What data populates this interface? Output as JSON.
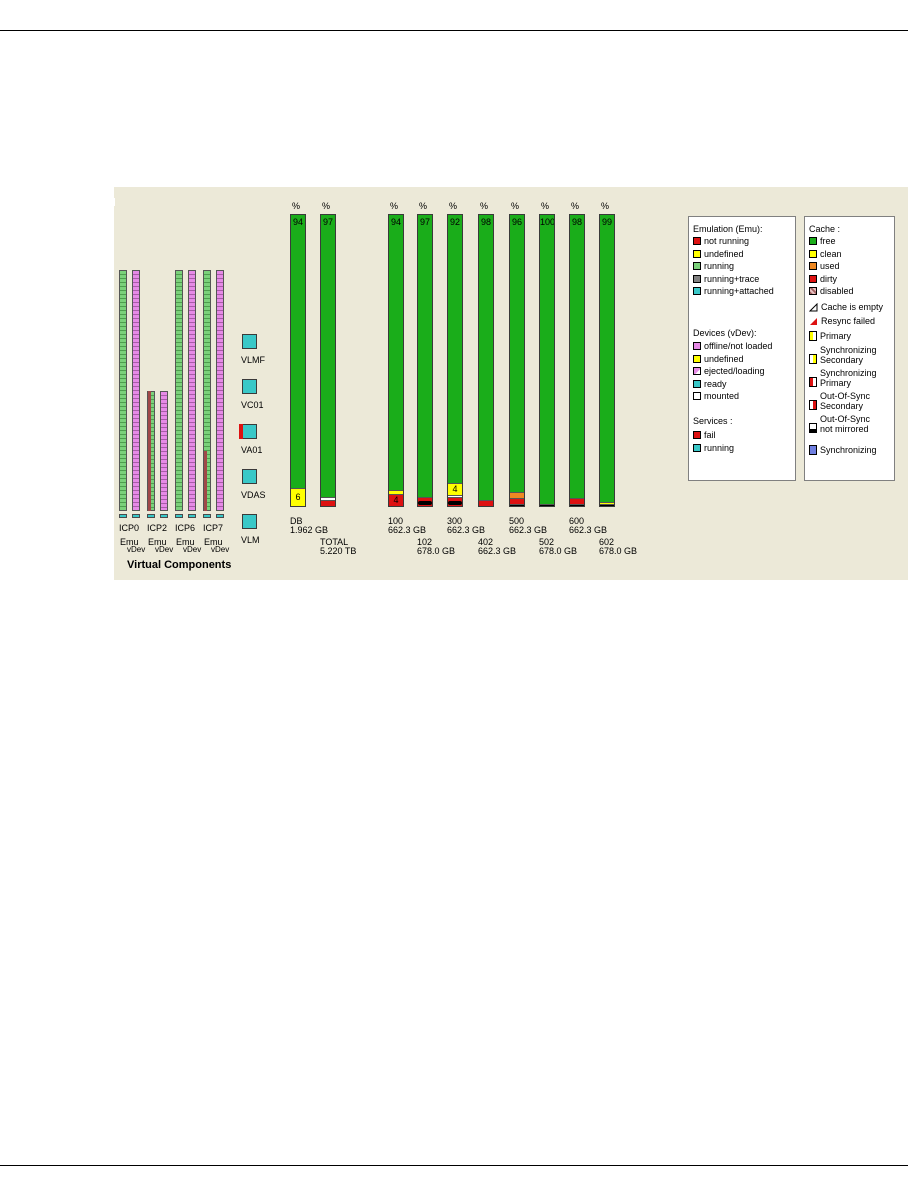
{
  "colors": {
    "emu_green": "#7bd17b",
    "vdev_pink": "#e68ae6",
    "cyan": "#39c8c8",
    "red": "#dd1111",
    "yellow": "#ffff00",
    "green": "#1aad1a",
    "orange": "#ee8822",
    "panel": "#ece9d8"
  },
  "directors": [
    {
      "name": "ICP0",
      "emu_label": "Emu",
      "vdev_label": "vDev",
      "emu_fill": 1.0,
      "vdev_fill": 1.0,
      "fail": 0
    },
    {
      "name": "ICP2",
      "emu_label": "Emu",
      "vdev_label": "vDev",
      "emu_fill": 0.5,
      "vdev_fill": 0.5,
      "fail": 0.5
    },
    {
      "name": "ICP6",
      "emu_label": "Emu",
      "vdev_label": "vDev",
      "emu_fill": 1.0,
      "vdev_fill": 1.0,
      "fail": 0
    },
    {
      "name": "ICP7",
      "emu_label": "Emu",
      "vdev_label": "vDev",
      "emu_fill": 1.0,
      "vdev_fill": 1.0,
      "fail": 0.25
    }
  ],
  "services": [
    {
      "name": "VLMF",
      "fail": false
    },
    {
      "name": "VC01",
      "fail": false
    },
    {
      "name": "VA01",
      "fail": true
    },
    {
      "name": "VDAS",
      "fail": false
    },
    {
      "name": "VLM",
      "fail": false
    }
  ],
  "virtual_components_label": "Virtual Components",
  "percent_sign": "%",
  "caches": [
    {
      "id": "DB",
      "size": "1.962 GB",
      "free": 94,
      "segs": [
        {
          "color": "yellow",
          "pct": 6,
          "label": "6"
        }
      ]
    },
    {
      "id": "TOTAL",
      "size": "5.220 TB",
      "free": 97,
      "segs": [
        {
          "color": "red",
          "pct": 2
        },
        {
          "color": "white",
          "pct": 1
        }
      ]
    },
    {
      "id": "100",
      "size": "662.3 GB",
      "free": 94,
      "segs": [
        {
          "color": "red",
          "pct": 4,
          "label": "4"
        },
        {
          "color": "yellow",
          "pct": 1.5
        }
      ]
    },
    {
      "id": "102",
      "size": "678.0 GB",
      "free": 97,
      "segs": [
        {
          "color": "red",
          "pct": 3
        }
      ],
      "dot": true
    },
    {
      "id": "300",
      "size": "662.3 GB",
      "free": 92,
      "segs": [
        {
          "color": "red",
          "pct": 3
        },
        {
          "color": "white",
          "pct": 0.7
        },
        {
          "color": "yellow",
          "pct": 4,
          "label": "4"
        }
      ],
      "dot": true
    },
    {
      "id": "402",
      "size": "662.3 GB",
      "free": 98,
      "segs": [
        {
          "color": "red",
          "pct": 2
        }
      ]
    },
    {
      "id": "500",
      "size": "662.3 GB",
      "free": 96,
      "segs": [
        {
          "color": "black",
          "pct": 0.8
        },
        {
          "color": "red",
          "pct": 2
        },
        {
          "color": "orange",
          "pct": 2
        }
      ]
    },
    {
      "id": "502",
      "size": "678.0 GB",
      "free": 100,
      "segs": [
        {
          "color": "black",
          "pct": 0.8
        }
      ]
    },
    {
      "id": "600",
      "size": "662.3 GB",
      "free": 98,
      "segs": [
        {
          "color": "black",
          "pct": 0.8
        },
        {
          "color": "red",
          "pct": 2
        }
      ]
    },
    {
      "id": "602",
      "size": "678.0 GB",
      "free": 99,
      "segs": [
        {
          "color": "black",
          "pct": 0.8
        },
        {
          "color": "yellow",
          "pct": 0.5
        }
      ]
    }
  ],
  "legend_emulation": {
    "title": "Emulation (Emu):",
    "items": [
      {
        "label": "not running",
        "color": "#dd1111"
      },
      {
        "label": "undefined",
        "color": "#ffff00"
      },
      {
        "label": "running",
        "color": "#7bd17b"
      },
      {
        "label": "running+trace",
        "color": "#808080"
      },
      {
        "label": "running+attached",
        "color": "#39c8c8"
      }
    ],
    "devices_title": "Devices (vDev):",
    "devices": [
      {
        "label": "offline/not loaded",
        "color": "#e68ae6"
      },
      {
        "label": "undefined",
        "color": "#ffff00"
      },
      {
        "label": "ejected/loading",
        "color": "#e68ae6"
      },
      {
        "label": "ready",
        "color": "#39c8c8"
      },
      {
        "label": "mounted",
        "color": "#ffffff"
      }
    ],
    "services_title": "Services :",
    "services": [
      {
        "label": "fail",
        "color": "#dd1111"
      },
      {
        "label": "running",
        "color": "#39c8c8"
      }
    ]
  },
  "legend_cache": {
    "title": "Cache :",
    "items": [
      {
        "label": "free",
        "color": "#1aad1a"
      },
      {
        "label": "clean",
        "color": "#ffff00"
      },
      {
        "label": "used",
        "color": "#ee8822"
      },
      {
        "label": "dirty",
        "color": "#dd1111"
      },
      {
        "label": "disabled",
        "color": "#a06060"
      }
    ],
    "cache_empty": "Cache is empty",
    "resync_failed": "Resync failed",
    "primary": "Primary",
    "sync_secondary_1": "Synchronizing",
    "sync_secondary_2": "Secondary",
    "sync_primary_1": "Synchronizing",
    "sync_primary_2": "Primary",
    "oos_secondary_1": "Out-Of-Sync",
    "oos_secondary_2": "Secondary",
    "oos_nm_1": "Out-Of-Sync",
    "oos_nm_2": "not mirrored",
    "synchronizing": "Synchronizing"
  }
}
